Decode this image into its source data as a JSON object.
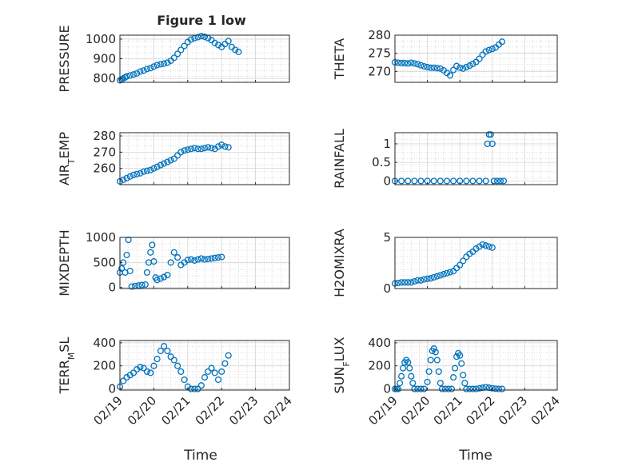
{
  "figure": {
    "title": "Figure 1 low",
    "marker_color": "#0072BD",
    "xlabel": "Time",
    "xticks": [
      "02/19",
      "02/20",
      "02/21",
      "02/22",
      "02/23",
      "02/24"
    ]
  },
  "chart_data": [
    {
      "type": "scatter",
      "ylabel": "PRESSURE",
      "ylim": [
        780,
        1020
      ],
      "yticks": [
        800,
        900,
        1000
      ],
      "xlim": [
        "02/19",
        "02/24"
      ],
      "points": [
        [
          0.0,
          790
        ],
        [
          0.05,
          795
        ],
        [
          0.1,
          800
        ],
        [
          0.15,
          805
        ],
        [
          0.2,
          810
        ],
        [
          0.3,
          815
        ],
        [
          0.4,
          820
        ],
        [
          0.5,
          825
        ],
        [
          0.6,
          835
        ],
        [
          0.7,
          840
        ],
        [
          0.8,
          848
        ],
        [
          0.9,
          852
        ],
        [
          1.0,
          860
        ],
        [
          1.1,
          868
        ],
        [
          1.2,
          872
        ],
        [
          1.3,
          875
        ],
        [
          1.4,
          880
        ],
        [
          1.5,
          890
        ],
        [
          1.6,
          905
        ],
        [
          1.7,
          925
        ],
        [
          1.8,
          945
        ],
        [
          1.9,
          965
        ],
        [
          2.0,
          985
        ],
        [
          2.1,
          998
        ],
        [
          2.2,
          1005
        ],
        [
          2.3,
          1010
        ],
        [
          2.4,
          1015
        ],
        [
          2.5,
          1012
        ],
        [
          2.6,
          1005
        ],
        [
          2.7,
          995
        ],
        [
          2.8,
          980
        ],
        [
          2.9,
          970
        ],
        [
          3.0,
          960
        ],
        [
          3.1,
          975
        ],
        [
          3.2,
          990
        ],
        [
          3.3,
          960
        ],
        [
          3.4,
          945
        ],
        [
          3.5,
          935
        ]
      ]
    },
    {
      "type": "scatter",
      "ylabel": "THETA",
      "ylim": [
        267,
        280
      ],
      "yticks": [
        270,
        275,
        280
      ],
      "xlim": [
        "02/19",
        "02/24"
      ],
      "points": [
        [
          0.0,
          272.5
        ],
        [
          0.1,
          272.4
        ],
        [
          0.2,
          272.3
        ],
        [
          0.3,
          272.3
        ],
        [
          0.4,
          272.2
        ],
        [
          0.5,
          272.4
        ],
        [
          0.6,
          272.2
        ],
        [
          0.7,
          272.0
        ],
        [
          0.8,
          271.7
        ],
        [
          0.9,
          271.4
        ],
        [
          1.0,
          271.2
        ],
        [
          1.1,
          271.0
        ],
        [
          1.2,
          271.0
        ],
        [
          1.3,
          270.9
        ],
        [
          1.4,
          270.8
        ],
        [
          1.5,
          270.3
        ],
        [
          1.6,
          269.6
        ],
        [
          1.7,
          268.9
        ],
        [
          1.8,
          270.4
        ],
        [
          1.9,
          271.5
        ],
        [
          2.0,
          271.0
        ],
        [
          2.1,
          270.8
        ],
        [
          2.2,
          271.2
        ],
        [
          2.3,
          271.6
        ],
        [
          2.4,
          272.1
        ],
        [
          2.5,
          272.6
        ],
        [
          2.6,
          273.5
        ],
        [
          2.7,
          274.6
        ],
        [
          2.8,
          275.5
        ],
        [
          2.9,
          275.9
        ],
        [
          3.0,
          276.2
        ],
        [
          3.1,
          276.6
        ],
        [
          3.2,
          277.4
        ],
        [
          3.3,
          278.2
        ]
      ]
    },
    {
      "type": "scatter",
      "ylabel": "AIR_TEMP",
      "ylim": [
        250,
        282
      ],
      "yticks": [
        260,
        270,
        280
      ],
      "xlim": [
        "02/19",
        "02/24"
      ],
      "points": [
        [
          0.0,
          252
        ],
        [
          0.1,
          253
        ],
        [
          0.2,
          254
        ],
        [
          0.3,
          255
        ],
        [
          0.4,
          256
        ],
        [
          0.5,
          256.5
        ],
        [
          0.6,
          257
        ],
        [
          0.7,
          258
        ],
        [
          0.8,
          258.5
        ],
        [
          0.9,
          259
        ],
        [
          1.0,
          260
        ],
        [
          1.1,
          261
        ],
        [
          1.2,
          262
        ],
        [
          1.3,
          263
        ],
        [
          1.4,
          264
        ],
        [
          1.5,
          265
        ],
        [
          1.6,
          266
        ],
        [
          1.7,
          268
        ],
        [
          1.8,
          270
        ],
        [
          1.9,
          271
        ],
        [
          2.0,
          271.5
        ],
        [
          2.1,
          272
        ],
        [
          2.2,
          272.5
        ],
        [
          2.3,
          272
        ],
        [
          2.4,
          272
        ],
        [
          2.5,
          272.5
        ],
        [
          2.6,
          273
        ],
        [
          2.7,
          272.5
        ],
        [
          2.8,
          272
        ],
        [
          2.9,
          273.5
        ],
        [
          3.0,
          274.5
        ],
        [
          3.1,
          273.5
        ],
        [
          3.2,
          273
        ]
      ]
    },
    {
      "type": "scatter",
      "ylabel": "RAINFALL",
      "ylim": [
        -0.1,
        1.3
      ],
      "yticks": [
        0,
        0.5,
        1
      ],
      "xlim": [
        "02/19",
        "02/24"
      ],
      "points": [
        [
          0.0,
          0
        ],
        [
          0.2,
          0
        ],
        [
          0.4,
          0
        ],
        [
          0.6,
          0
        ],
        [
          0.8,
          0
        ],
        [
          1.0,
          0
        ],
        [
          1.2,
          0
        ],
        [
          1.4,
          0
        ],
        [
          1.6,
          0
        ],
        [
          1.8,
          0
        ],
        [
          2.0,
          0
        ],
        [
          2.2,
          0
        ],
        [
          2.4,
          0
        ],
        [
          2.6,
          0
        ],
        [
          2.8,
          0
        ],
        [
          2.85,
          1.0
        ],
        [
          2.9,
          1.25
        ],
        [
          2.95,
          1.25
        ],
        [
          3.0,
          1.0
        ],
        [
          3.05,
          0
        ],
        [
          3.15,
          0
        ],
        [
          3.25,
          0
        ],
        [
          3.35,
          0
        ]
      ]
    },
    {
      "type": "scatter",
      "ylabel": "MIXDEPTH",
      "ylim": [
        -20,
        1000
      ],
      "yticks": [
        0,
        500,
        1000
      ],
      "xlim": [
        "02/19",
        "02/24"
      ],
      "points": [
        [
          0.0,
          300
        ],
        [
          0.05,
          380
        ],
        [
          0.1,
          500
        ],
        [
          0.15,
          300
        ],
        [
          0.2,
          650
        ],
        [
          0.25,
          950
        ],
        [
          0.3,
          330
        ],
        [
          0.35,
          20
        ],
        [
          0.45,
          30
        ],
        [
          0.55,
          40
        ],
        [
          0.65,
          50
        ],
        [
          0.75,
          60
        ],
        [
          0.8,
          300
        ],
        [
          0.85,
          500
        ],
        [
          0.9,
          700
        ],
        [
          0.95,
          850
        ],
        [
          1.0,
          520
        ],
        [
          1.05,
          200
        ],
        [
          1.1,
          150
        ],
        [
          1.2,
          180
        ],
        [
          1.3,
          210
        ],
        [
          1.4,
          250
        ],
        [
          1.5,
          500
        ],
        [
          1.6,
          700
        ],
        [
          1.7,
          600
        ],
        [
          1.8,
          450
        ],
        [
          1.9,
          500
        ],
        [
          2.0,
          550
        ],
        [
          2.1,
          560
        ],
        [
          2.2,
          540
        ],
        [
          2.3,
          560
        ],
        [
          2.4,
          580
        ],
        [
          2.5,
          560
        ],
        [
          2.6,
          570
        ],
        [
          2.7,
          580
        ],
        [
          2.8,
          590
        ],
        [
          2.9,
          600
        ],
        [
          3.0,
          610
        ]
      ]
    },
    {
      "type": "scatter",
      "ylabel": "H2OMIXRA",
      "ylim": [
        0,
        5
      ],
      "yticks": [
        0,
        5
      ],
      "xlim": [
        "02/19",
        "02/24"
      ],
      "points": [
        [
          0.0,
          0.5
        ],
        [
          0.1,
          0.55
        ],
        [
          0.2,
          0.6
        ],
        [
          0.3,
          0.6
        ],
        [
          0.4,
          0.6
        ],
        [
          0.5,
          0.6
        ],
        [
          0.6,
          0.7
        ],
        [
          0.7,
          0.8
        ],
        [
          0.8,
          0.8
        ],
        [
          0.9,
          0.9
        ],
        [
          1.0,
          0.95
        ],
        [
          1.1,
          1.0
        ],
        [
          1.2,
          1.1
        ],
        [
          1.3,
          1.2
        ],
        [
          1.4,
          1.3
        ],
        [
          1.5,
          1.4
        ],
        [
          1.6,
          1.5
        ],
        [
          1.7,
          1.6
        ],
        [
          1.8,
          1.7
        ],
        [
          1.9,
          2.0
        ],
        [
          2.0,
          2.3
        ],
        [
          2.1,
          2.7
        ],
        [
          2.2,
          3.1
        ],
        [
          2.3,
          3.4
        ],
        [
          2.4,
          3.6
        ],
        [
          2.5,
          3.9
        ],
        [
          2.6,
          4.1
        ],
        [
          2.7,
          4.3
        ],
        [
          2.8,
          4.2
        ],
        [
          2.9,
          4.1
        ],
        [
          3.0,
          4.0
        ]
      ]
    },
    {
      "type": "scatter",
      "ylabel": "TERR_MSL",
      "ylim": [
        -10,
        420
      ],
      "yticks": [
        0,
        200,
        400
      ],
      "xlim": [
        "02/19",
        "02/24"
      ],
      "points": [
        [
          0.0,
          20
        ],
        [
          0.1,
          70
        ],
        [
          0.2,
          100
        ],
        [
          0.3,
          120
        ],
        [
          0.4,
          140
        ],
        [
          0.5,
          170
        ],
        [
          0.6,
          190
        ],
        [
          0.7,
          180
        ],
        [
          0.8,
          150
        ],
        [
          0.9,
          140
        ],
        [
          1.0,
          200
        ],
        [
          1.1,
          260
        ],
        [
          1.2,
          330
        ],
        [
          1.3,
          370
        ],
        [
          1.4,
          330
        ],
        [
          1.5,
          280
        ],
        [
          1.6,
          250
        ],
        [
          1.7,
          200
        ],
        [
          1.8,
          150
        ],
        [
          1.9,
          80
        ],
        [
          2.0,
          20
        ],
        [
          2.1,
          0
        ],
        [
          2.2,
          0
        ],
        [
          2.3,
          0
        ],
        [
          2.4,
          30
        ],
        [
          2.5,
          100
        ],
        [
          2.6,
          150
        ],
        [
          2.7,
          180
        ],
        [
          2.8,
          140
        ],
        [
          2.9,
          80
        ],
        [
          3.0,
          150
        ],
        [
          3.1,
          220
        ],
        [
          3.2,
          290
        ]
      ]
    },
    {
      "type": "scatter",
      "ylabel": "SUN_FLUX",
      "ylim": [
        -10,
        420
      ],
      "yticks": [
        0,
        200,
        400
      ],
      "xlim": [
        "02/19",
        "02/24"
      ],
      "points": [
        [
          0.0,
          0
        ],
        [
          0.05,
          0
        ],
        [
          0.1,
          0
        ],
        [
          0.15,
          50
        ],
        [
          0.2,
          110
        ],
        [
          0.25,
          180
        ],
        [
          0.3,
          230
        ],
        [
          0.35,
          250
        ],
        [
          0.4,
          230
        ],
        [
          0.45,
          180
        ],
        [
          0.5,
          110
        ],
        [
          0.55,
          50
        ],
        [
          0.6,
          0
        ],
        [
          0.7,
          0
        ],
        [
          0.8,
          0
        ],
        [
          0.9,
          0
        ],
        [
          1.0,
          60
        ],
        [
          1.05,
          150
        ],
        [
          1.1,
          250
        ],
        [
          1.15,
          330
        ],
        [
          1.2,
          350
        ],
        [
          1.25,
          320
        ],
        [
          1.3,
          250
        ],
        [
          1.35,
          150
        ],
        [
          1.4,
          50
        ],
        [
          1.45,
          0
        ],
        [
          1.55,
          0
        ],
        [
          1.65,
          0
        ],
        [
          1.75,
          0
        ],
        [
          1.8,
          100
        ],
        [
          1.85,
          180
        ],
        [
          1.9,
          280
        ],
        [
          1.95,
          310
        ],
        [
          2.0,
          290
        ],
        [
          2.05,
          220
        ],
        [
          2.1,
          120
        ],
        [
          2.15,
          50
        ],
        [
          2.2,
          0
        ],
        [
          2.3,
          0
        ],
        [
          2.4,
          0
        ],
        [
          2.5,
          0
        ],
        [
          2.6,
          5
        ],
        [
          2.7,
          10
        ],
        [
          2.8,
          15
        ],
        [
          2.9,
          10
        ],
        [
          3.0,
          5
        ],
        [
          3.1,
          2
        ],
        [
          3.2,
          0
        ],
        [
          3.3,
          0
        ]
      ]
    }
  ]
}
